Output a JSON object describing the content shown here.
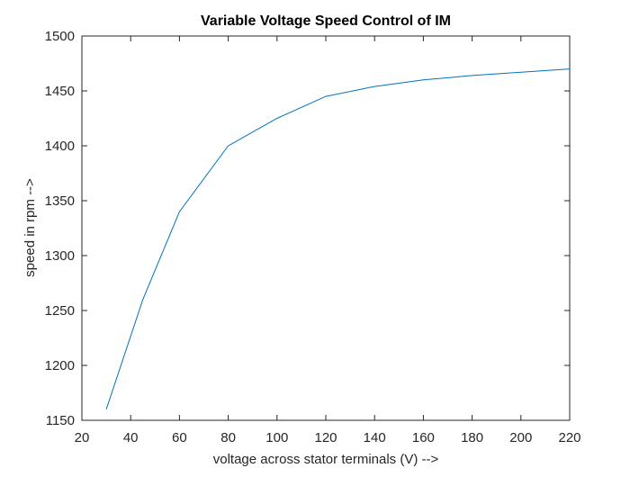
{
  "chart_data": {
    "type": "line",
    "title": "Variable Voltage Speed Control of IM",
    "xlabel": "voltage across stator terminals (V) -->",
    "ylabel": "speed in rpm -->",
    "xlim": [
      20,
      220
    ],
    "ylim": [
      1150,
      1500
    ],
    "xticks": [
      20,
      40,
      60,
      80,
      100,
      120,
      140,
      160,
      180,
      200,
      220
    ],
    "yticks": [
      1150,
      1200,
      1250,
      1300,
      1350,
      1400,
      1450,
      1500
    ],
    "grid": false,
    "series": [
      {
        "color": "#0072BD",
        "x": [
          30,
          45,
          60,
          80,
          100,
          120,
          140,
          160,
          180,
          200,
          220
        ],
        "y": [
          1160,
          1260,
          1340,
          1400,
          1425,
          1445,
          1454,
          1460,
          1464,
          1467,
          1470
        ]
      }
    ]
  }
}
